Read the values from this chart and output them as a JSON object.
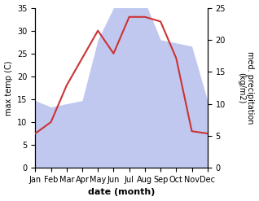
{
  "months": [
    "Jan",
    "Feb",
    "Mar",
    "Apr",
    "May",
    "Jun",
    "Jul",
    "Aug",
    "Sep",
    "Oct",
    "Nov",
    "Dec"
  ],
  "temperature": [
    7.5,
    10.0,
    18.0,
    24.0,
    30.0,
    25.0,
    33.0,
    33.0,
    32.0,
    24.0,
    8.0,
    7.5
  ],
  "precipitation": [
    10.5,
    9.5,
    10.0,
    10.5,
    20.0,
    25.0,
    27.0,
    26.0,
    20.0,
    19.5,
    19.0,
    10.5
  ],
  "temp_color": "#cc3333",
  "precip_fill_color": "#c0c8f0",
  "temp_ylim": [
    0,
    35
  ],
  "precip_ylim": [
    0,
    25
  ],
  "xlabel": "date (month)",
  "ylabel_left": "max temp (C)",
  "ylabel_right": "med. precipitation\n(kg/m2)",
  "temp_yticks": [
    0,
    5,
    10,
    15,
    20,
    25,
    30,
    35
  ],
  "precip_yticks": [
    0,
    5,
    10,
    15,
    20,
    25
  ],
  "background_color": "#ffffff"
}
